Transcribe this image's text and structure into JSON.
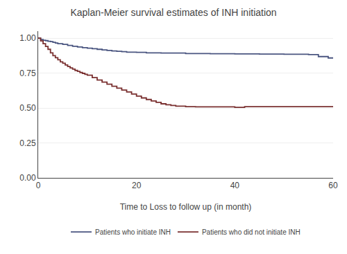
{
  "chart_data": {
    "type": "step",
    "title": "Kaplan-Meier survival estimates of INH initiation",
    "xlabel": "Time to Loss to follow up (in month)",
    "xlim": [
      0,
      60
    ],
    "xticks": [
      0,
      20,
      40,
      60
    ],
    "ylim": [
      0,
      1.05
    ],
    "yticks": [
      {
        "value": 0.0,
        "label": "0.00"
      },
      0.25,
      {
        "value": 0.5,
        "label": "0.50"
      },
      0.75,
      {
        "value": 1.0,
        "label": "1.00"
      }
    ],
    "grid": "y",
    "legend": "bottom",
    "series": [
      {
        "name": "Patients who initiate INH",
        "color": "#4a5580",
        "x": [
          0,
          0.5,
          1,
          1.5,
          2,
          2.5,
          3,
          3.5,
          4,
          5,
          6,
          7,
          8,
          9,
          10,
          11,
          12,
          13,
          14,
          15,
          16,
          17,
          18,
          20,
          22,
          25,
          30,
          35,
          40,
          45,
          50,
          55,
          57,
          59,
          60
        ],
        "values": [
          1.0,
          0.99,
          0.985,
          0.982,
          0.978,
          0.975,
          0.97,
          0.965,
          0.96,
          0.955,
          0.948,
          0.942,
          0.937,
          0.932,
          0.928,
          0.924,
          0.92,
          0.916,
          0.912,
          0.908,
          0.906,
          0.903,
          0.9,
          0.898,
          0.895,
          0.893,
          0.89,
          0.888,
          0.887,
          0.886,
          0.885,
          0.882,
          0.868,
          0.858,
          0.855
        ]
      },
      {
        "name": "Patients who did not initiate INH",
        "color": "#7a3030",
        "x": [
          0,
          0.5,
          1,
          1.5,
          2,
          2.5,
          3,
          3.5,
          4,
          4.5,
          5,
          5.5,
          6,
          6.5,
          7,
          7.5,
          8,
          8.5,
          9,
          9.5,
          10,
          11,
          12,
          13,
          14,
          15,
          16,
          17,
          18,
          19,
          20,
          21,
          22,
          23,
          24,
          25,
          26,
          27,
          28,
          30,
          32,
          34,
          36,
          38,
          40,
          42,
          44,
          46,
          48,
          50,
          52,
          55,
          60
        ],
        "values": [
          1.0,
          0.98,
          0.96,
          0.94,
          0.92,
          0.895,
          0.875,
          0.86,
          0.845,
          0.83,
          0.82,
          0.808,
          0.797,
          0.787,
          0.778,
          0.769,
          0.762,
          0.754,
          0.748,
          0.741,
          0.735,
          0.718,
          0.7,
          0.685,
          0.67,
          0.656,
          0.642,
          0.628,
          0.615,
          0.6,
          0.585,
          0.572,
          0.561,
          0.55,
          0.54,
          0.53,
          0.523,
          0.518,
          0.513,
          0.51,
          0.508,
          0.508,
          0.508,
          0.508,
          0.505,
          0.51,
          0.51,
          0.51,
          0.51,
          0.51,
          0.51,
          0.51,
          0.51
        ]
      }
    ]
  }
}
